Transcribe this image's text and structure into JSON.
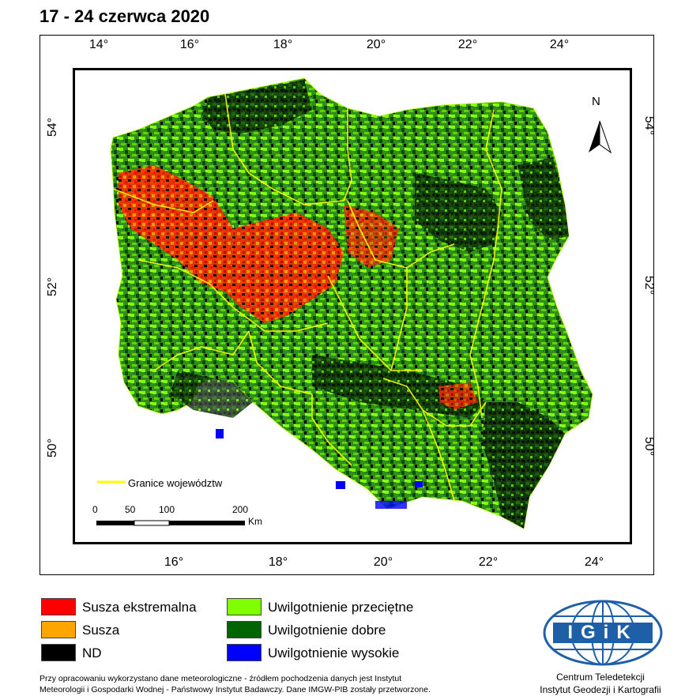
{
  "title": "17 - 24 czerwca 2020",
  "graticule": {
    "top_lon_labels": [
      "14°",
      "16°",
      "18°",
      "20°",
      "22°",
      "24°"
    ],
    "bottom_lon_labels": [
      "16°",
      "18°",
      "20°",
      "22°",
      "24°"
    ],
    "left_lat_labels": [
      "54°",
      "52°",
      "50°"
    ],
    "right_lat_labels": [
      "54°",
      "52°",
      "50°"
    ]
  },
  "north_arrow": {
    "label": "N"
  },
  "boundary_legend": {
    "label": "Granice województw",
    "color": "#ffff00"
  },
  "scale_bar": {
    "ticks": [
      "0",
      "50",
      "100",
      "200"
    ],
    "unit": "Km"
  },
  "legend": {
    "items": [
      {
        "label": "Susza ekstremalna",
        "color": "#ff0000"
      },
      {
        "label": "Susza",
        "color": "#ffa500"
      },
      {
        "label": "ND",
        "color": "#000000"
      },
      {
        "label": "Uwilgotnienie przeciętne",
        "color": "#80ff00"
      },
      {
        "label": "Uwilgotnienie dobre",
        "color": "#006400"
      },
      {
        "label": "Uwilgotnienie wysokie",
        "color": "#0000ff"
      }
    ]
  },
  "footnote": {
    "line1": "Przy opracowaniu wykorzystano dane meteorologiczne - źródłem pochodzenia danych jest Instytut",
    "line2": "Meteorologii i Gospodarki Wodnej - Państwowy Instytut Badawczy. Dane IMGW-PIB zostały przetworzone."
  },
  "logo": {
    "text": "IGiK",
    "caption_line1": "Centrum Teledetekcji",
    "caption_line2": "Instytut Geodezji i Kartografii",
    "color": "#1f5fa8"
  }
}
